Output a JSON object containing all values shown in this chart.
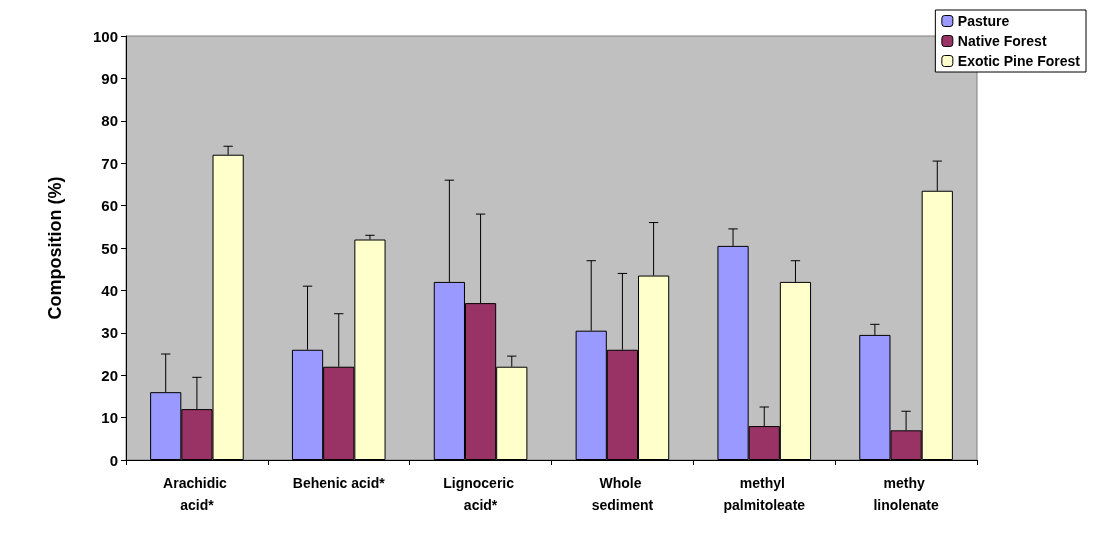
{
  "chart_data": {
    "type": "bar",
    "ylabel": "Composition (%)",
    "categories": [
      "Arachidic acid*",
      "Behenic acid*",
      "Lignoceric acid*",
      "Whole sediment",
      "methyl palmitoleate",
      "methy linolenate"
    ],
    "series": [
      {
        "name": "Pasture",
        "color": "#9999ff",
        "values": [
          16,
          26,
          42,
          30.5,
          50.5,
          29.5
        ],
        "errors": [
          [
            16,
            25
          ],
          [
            26,
            41
          ],
          [
            42,
            66
          ],
          [
            30.5,
            47
          ],
          [
            50.5,
            54.5
          ],
          [
            29.5,
            32
          ]
        ]
      },
      {
        "name": "Native Forest",
        "color": "#993366",
        "values": [
          12,
          22,
          37,
          26,
          8,
          7
        ],
        "errors": [
          [
            12,
            19.5
          ],
          [
            22,
            34.5
          ],
          [
            37,
            58
          ],
          [
            26,
            44
          ],
          [
            8,
            12.5
          ],
          [
            7,
            11.5
          ]
        ]
      },
      {
        "name": "Exotic Pine Forest",
        "color": "#ffffcc",
        "values": [
          72,
          52,
          22,
          43.5,
          42,
          63.5
        ],
        "errors": [
          [
            72,
            74
          ],
          [
            52,
            53
          ],
          [
            22,
            24.5
          ],
          [
            43.5,
            56
          ],
          [
            42,
            47
          ],
          [
            63.5,
            70.5
          ]
        ]
      }
    ],
    "ylim": [
      0,
      100
    ],
    "yticks": [
      0,
      10,
      20,
      30,
      40,
      50,
      60,
      70,
      80,
      90,
      100
    ],
    "grid": false,
    "legend": "top right"
  }
}
